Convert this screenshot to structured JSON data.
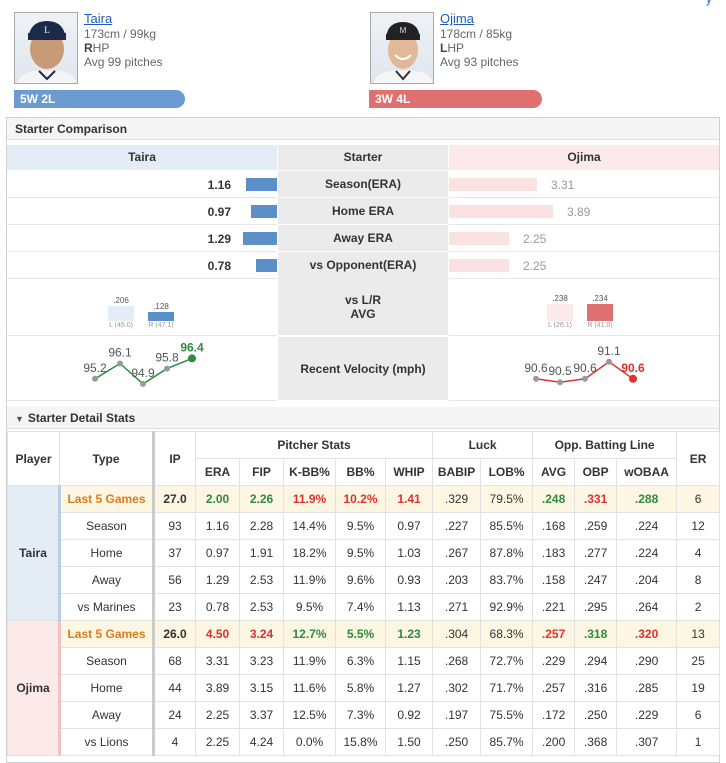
{
  "header": {
    "top_link": "y",
    "home": {
      "name": "Taira",
      "height_weight": "173cm / 99kg",
      "hand_bold": "R",
      "hand_rest": "HP",
      "avg_pitches": "Avg 99 pitches",
      "record": "5W 2L"
    },
    "away": {
      "name": "Ojima",
      "height_weight": "178cm / 85kg",
      "hand_bold": "L",
      "hand_rest": "HP",
      "avg_pitches": "Avg 93 pitches",
      "record": "3W 4L"
    }
  },
  "colors": {
    "home": "#5b8fc7",
    "home_badge": "#6b9bd0",
    "away": "#e07070",
    "away_bar": "#fbe2e2",
    "good": "#2e8b3f",
    "bad": "#e03030",
    "highlight": "#e07b1a"
  },
  "comparison": {
    "title": "Starter Comparison",
    "col_left": "Taira",
    "col_mid": "Starter",
    "col_right": "Ojima",
    "rows": [
      {
        "label": "Season(ERA)",
        "left": "1.16",
        "right": "3.31",
        "lnum": 1.16,
        "rnum": 3.31
      },
      {
        "label": "Home ERA",
        "left": "0.97",
        "right": "3.89",
        "lnum": 0.97,
        "rnum": 3.89
      },
      {
        "label": "Away ERA",
        "left": "1.29",
        "right": "2.25",
        "lnum": 1.29,
        "rnum": 2.25
      },
      {
        "label": "vs Opponent(ERA)",
        "left": "0.78",
        "right": "2.25",
        "lnum": 0.78,
        "rnum": 2.25
      }
    ],
    "lr": {
      "label_line1": "vs L/R",
      "label_line2": "AVG",
      "left": [
        {
          "val": ".206",
          "tag": "L (45.0)"
        },
        {
          "val": ".128",
          "tag": "R (47.1)"
        }
      ],
      "right": [
        {
          "val": ".238",
          "tag": "L (26.1)"
        },
        {
          "val": ".234",
          "tag": "R (41.0)"
        }
      ]
    },
    "velocity": {
      "label": "Recent Velocity (mph)",
      "left": [
        "95.2",
        "96.1",
        "94.9",
        "95.8",
        "96.4"
      ],
      "right": [
        "90.6",
        "90.5",
        "90.6",
        "91.1",
        "90.6"
      ]
    }
  },
  "detail": {
    "title": "Starter Detail Stats",
    "headers": {
      "player": "Player",
      "type": "Type",
      "ip": "IP",
      "pitcher_stats": "Pitcher Stats",
      "luck": "Luck",
      "opp": "Opp. Batting Line",
      "er": "ER",
      "cols": [
        "ERA",
        "FIP",
        "K-BB%",
        "BB%",
        "WHIP",
        "BABIP",
        "LOB%",
        "AVG",
        "OBP",
        "wOBAA"
      ]
    },
    "groups": [
      {
        "player": "Taira",
        "rows": [
          {
            "type": "Last 5 Games",
            "ip": "27.0",
            "era": "2.00",
            "fip": "2.26",
            "kbb": "11.9%",
            "bb": "10.2%",
            "whip": "1.41",
            "babip": ".329",
            "lob": "79.5%",
            "avg": ".248",
            "obp": ".331",
            "woba": ".288",
            "er": "6"
          },
          {
            "type": "Season",
            "ip": "93",
            "era": "1.16",
            "fip": "2.28",
            "kbb": "14.4%",
            "bb": "9.5%",
            "whip": "0.97",
            "babip": ".227",
            "lob": "85.5%",
            "avg": ".168",
            "obp": ".259",
            "woba": ".224",
            "er": "12"
          },
          {
            "type": "Home",
            "ip": "37",
            "era": "0.97",
            "fip": "1.91",
            "kbb": "18.2%",
            "bb": "9.5%",
            "whip": "1.03",
            "babip": ".267",
            "lob": "87.8%",
            "avg": ".183",
            "obp": ".277",
            "woba": ".224",
            "er": "4"
          },
          {
            "type": "Away",
            "ip": "56",
            "era": "1.29",
            "fip": "2.53",
            "kbb": "11.9%",
            "bb": "9.6%",
            "whip": "0.93",
            "babip": ".203",
            "lob": "83.7%",
            "avg": ".158",
            "obp": ".247",
            "woba": ".204",
            "er": "8"
          },
          {
            "type": "vs Marines",
            "ip": "23",
            "era": "0.78",
            "fip": "2.53",
            "kbb": "9.5%",
            "bb": "7.4%",
            "whip": "1.13",
            "babip": ".271",
            "lob": "92.9%",
            "avg": ".221",
            "obp": ".295",
            "woba": ".264",
            "er": "2"
          }
        ]
      },
      {
        "player": "Ojima",
        "rows": [
          {
            "type": "Last 5 Games",
            "ip": "26.0",
            "era": "4.50",
            "fip": "3.24",
            "kbb": "12.7%",
            "bb": "5.5%",
            "whip": "1.23",
            "babip": ".304",
            "lob": "68.3%",
            "avg": ".257",
            "obp": ".318",
            "woba": ".320",
            "er": "13"
          },
          {
            "type": "Season",
            "ip": "68",
            "era": "3.31",
            "fip": "3.23",
            "kbb": "11.9%",
            "bb": "6.3%",
            "whip": "1.15",
            "babip": ".268",
            "lob": "72.7%",
            "avg": ".229",
            "obp": ".294",
            "woba": ".290",
            "er": "25"
          },
          {
            "type": "Home",
            "ip": "44",
            "era": "3.89",
            "fip": "3.15",
            "kbb": "11.6%",
            "bb": "5.8%",
            "whip": "1.27",
            "babip": ".302",
            "lob": "71.7%",
            "avg": ".257",
            "obp": ".316",
            "woba": ".285",
            "er": "19"
          },
          {
            "type": "Away",
            "ip": "24",
            "era": "2.25",
            "fip": "3.37",
            "kbb": "12.5%",
            "bb": "7.3%",
            "whip": "0.92",
            "babip": ".197",
            "lob": "75.5%",
            "avg": ".172",
            "obp": ".250",
            "woba": ".229",
            "er": "6"
          },
          {
            "type": "vs Lions",
            "ip": "4",
            "era": "2.25",
            "fip": "4.24",
            "kbb": "0.0%",
            "bb": "15.8%",
            "whip": "1.50",
            "babip": ".250",
            "lob": "85.7%",
            "avg": ".200",
            "obp": ".368",
            "woba": ".307",
            "er": "1"
          }
        ]
      }
    ]
  }
}
